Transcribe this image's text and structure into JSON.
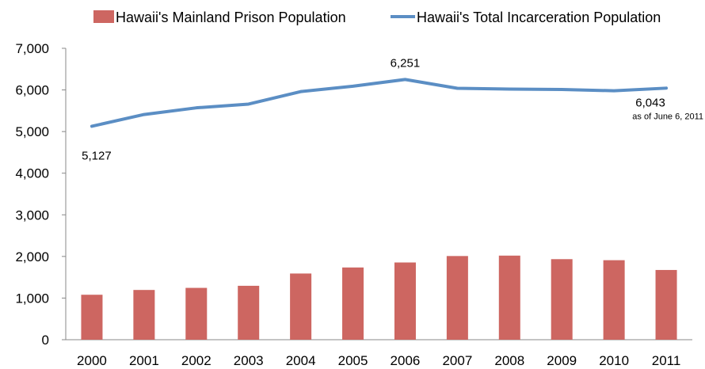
{
  "chart_data": {
    "type": "bar",
    "title": "",
    "xlabel": "",
    "ylabel": "",
    "categories": [
      "2000",
      "2001",
      "2002",
      "2003",
      "2004",
      "2005",
      "2006",
      "2007",
      "2008",
      "2009",
      "2010",
      "2011"
    ],
    "ylim": [
      0,
      7000
    ],
    "yticks": [
      0,
      1000,
      2000,
      3000,
      4000,
      5000,
      6000,
      7000
    ],
    "ytick_labels": [
      "0",
      "1,000",
      "2,000",
      "3,000",
      "4,000",
      "5,000",
      "6,000",
      "7,000"
    ],
    "grid": false,
    "legend_position": "top",
    "series": [
      {
        "name": "Hawaii's Mainland Prison Population",
        "type": "bar",
        "color": "#cd6661",
        "values": [
          1080,
          1195,
          1245,
          1295,
          1590,
          1735,
          1855,
          2010,
          2020,
          1935,
          1910,
          1675
        ]
      },
      {
        "name": "Hawaii's Total Incarceration Population",
        "type": "line",
        "color": "#5b8ec4",
        "values": [
          5127,
          5410,
          5570,
          5660,
          5960,
          6090,
          6251,
          6040,
          6020,
          6010,
          5980,
          6043
        ]
      }
    ],
    "annotations": [
      {
        "text": "5,127",
        "category": "2000",
        "series": 1
      },
      {
        "text": "6,251",
        "category": "2006",
        "series": 1
      },
      {
        "text": "6,043",
        "category": "2011",
        "series": 1
      },
      {
        "text": "as of June 6, 2011",
        "category": "2011",
        "series": 1
      }
    ]
  }
}
